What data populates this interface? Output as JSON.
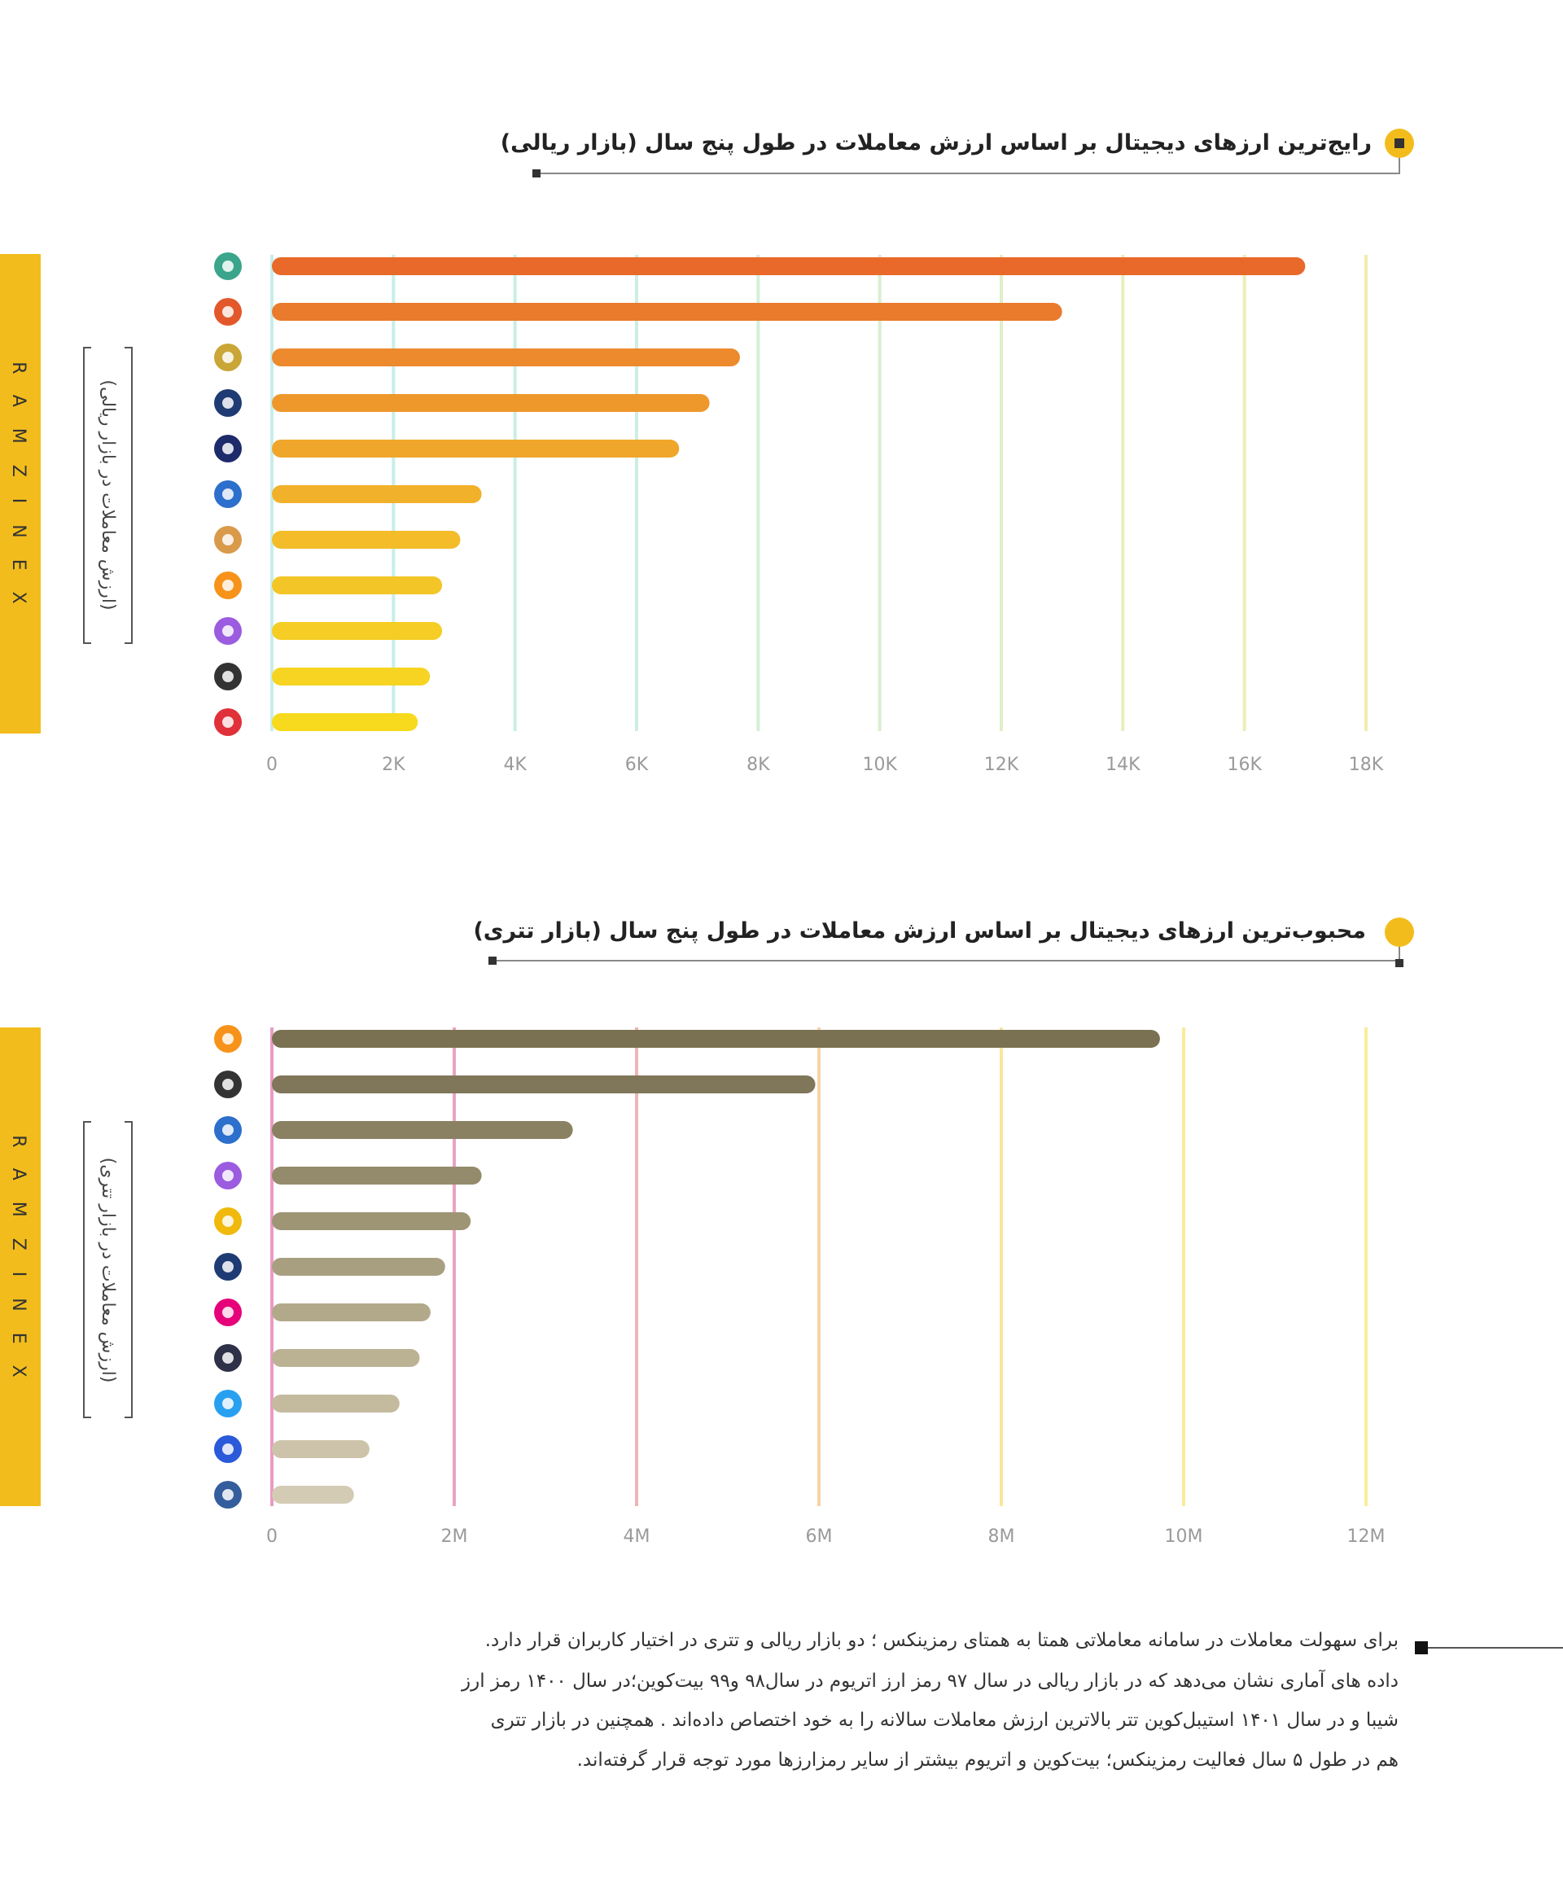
{
  "chart_data": [
    {
      "type": "barh",
      "title": "رایج‌ترین ارزهای دیجیتال بر اساس ارزش معاملات در طول پنج سال (بازار ریالی)",
      "ylabel": "(ارزش معاملات در بازار ریالی)",
      "categories": [
        null,
        null,
        null,
        null,
        null,
        null,
        null,
        null,
        null,
        null,
        null
      ],
      "values": [
        17000,
        13000,
        7700,
        7200,
        6700,
        3450,
        3100,
        2800,
        2800,
        2600,
        2400
      ],
      "colors": [
        "#e8692a",
        "#ea7a2c",
        "#ec8a2d",
        "#ee982c",
        "#f0a52b",
        "#f2b12a",
        "#f3bc28",
        "#f4c526",
        "#f5cd24",
        "#f6d421",
        "#f7da1e"
      ],
      "xlim": [
        0,
        18000
      ],
      "xticks": [
        0,
        {
          "value": 2000,
          "label": "2K"
        },
        {
          "value": 4000,
          "label": "4K"
        },
        {
          "value": 6000,
          "label": "6K"
        },
        {
          "value": 8000,
          "label": "8K"
        },
        {
          "value": 10000,
          "label": "10K"
        },
        {
          "value": 12000,
          "label": "12K"
        },
        {
          "value": 14000,
          "label": "14K"
        },
        {
          "value": 16000,
          "label": "16K"
        },
        {
          "value": 18000,
          "label": "18K"
        }
      ],
      "grid": true,
      "grid_colors": [
        "#c6efe8",
        "#c6efe8",
        "#c9efe5",
        "#cdefe0",
        "#d3efd9",
        "#d9efd0",
        "#e0efc6",
        "#e6efbd",
        "#ecefb4",
        "#f0eeab"
      ]
    },
    {
      "type": "barh",
      "title": "محبوب‌ترین ارزهای دیجیتال بر اساس ارزش معاملات در طول پنج سال (بازار تتری)",
      "ylabel": "(ارزش معاملات در بازار تتری)",
      "categories": [
        null,
        null,
        null,
        null,
        null,
        null,
        null,
        null,
        null,
        null,
        null
      ],
      "values": [
        9740000,
        5960000,
        3300000,
        2300000,
        2180000,
        1900000,
        1740000,
        1620000,
        1400000,
        1070000,
        900000
      ],
      "colors": [
        "#7a7152",
        "#80775a",
        "#8a8162",
        "#948b6c",
        "#9e9575",
        "#a89f80",
        "#b2a98a",
        "#bbb294",
        "#c4bb9f",
        "#ccc3aa",
        "#d4cbb5"
      ],
      "xlim": [
        0,
        12000000
      ],
      "xticks": [
        0,
        {
          "value": 2000000,
          "label": "2M"
        },
        {
          "value": 4000000,
          "label": "4M"
        },
        {
          "value": 6000000,
          "label": "6M"
        },
        {
          "value": 8000000,
          "label": "8M"
        },
        {
          "value": 10000000,
          "label": "10M"
        },
        {
          "value": 12000000,
          "label": "12M"
        }
      ],
      "grid": true,
      "grid_colors": [
        "#e99bc4",
        "#e9a3c4",
        "#f0b4b4",
        "#f7d3a6",
        "#f9e79a",
        "#faeb9a",
        "#faec9c"
      ]
    }
  ],
  "brand": "RAMZINEX",
  "paragraph": [
    "برای سهولت معاملات در سامانه معاملاتی همتا به همتای رمزینکس ؛ دو بازار ریالی و تتری در اختیار کاربران قرار دارد.",
    "داده های آماری نشان می‌دهد که در بازار ریالی  در سال ۹۷ رمز ارز اتریوم در سال۹۸ و۹۹ بیت‌کوین؛در سال ۱۴۰۰ رمز ارز",
    "شیبا و در سال ۱۴۰۱ استیبل‌کوین تتر بالاترین ارزش معاملات سالانه را به خود اختصاص داده‌اند . همچنین در بازار تتری",
    "هم در طول ۵ سال فعالیت رمزینکس؛ بیت‌کوین و اتریوم بیشتر از سایر رمزارزها مورد توجه قرار گرفته‌اند."
  ]
}
